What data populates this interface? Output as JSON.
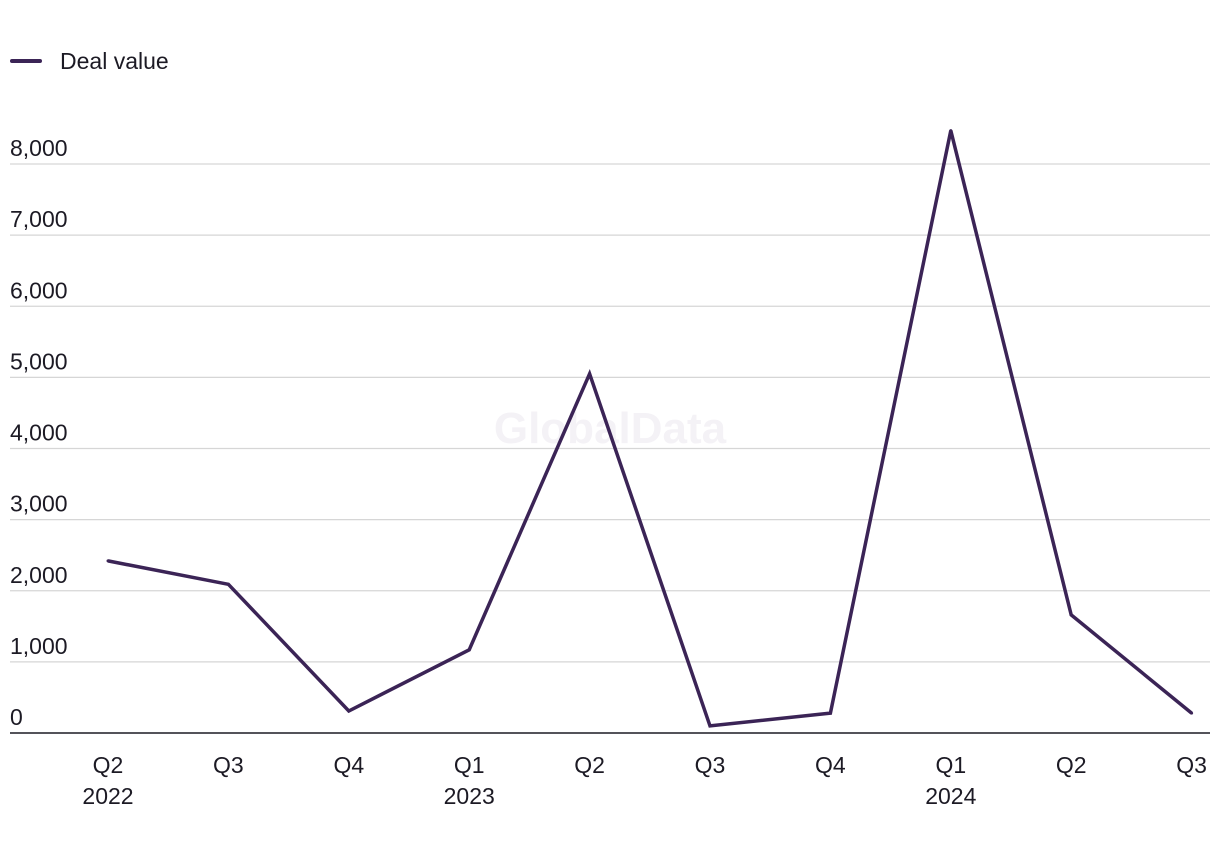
{
  "legend": {
    "label": "Deal value",
    "color": "#3b2456"
  },
  "watermark": "GlobalData",
  "chart_data": {
    "type": "line",
    "title": "",
    "xlabel": "",
    "ylabel": "",
    "categories": [
      "Q2",
      "Q3",
      "Q4",
      "Q1",
      "Q2",
      "Q3",
      "Q4",
      "Q1",
      "Q2",
      "Q3"
    ],
    "year_labels": [
      "2022",
      "",
      "",
      "2023",
      "",
      "",
      "",
      "2024",
      "",
      ""
    ],
    "series": [
      {
        "name": "Deal value",
        "color": "#3b2456",
        "values": [
          2420,
          2090,
          310,
          1170,
          5050,
          100,
          280,
          8470,
          1660,
          280
        ]
      }
    ],
    "yticks": [
      0,
      1000,
      2000,
      3000,
      4000,
      5000,
      6000,
      7000,
      8000
    ],
    "ytick_labels": [
      "0",
      "1,000",
      "2,000",
      "3,000",
      "4,000",
      "5,000",
      "6,000",
      "7,000",
      "8,000"
    ],
    "ylim": [
      0,
      8000
    ],
    "grid": true,
    "legend_position": "top-left"
  }
}
